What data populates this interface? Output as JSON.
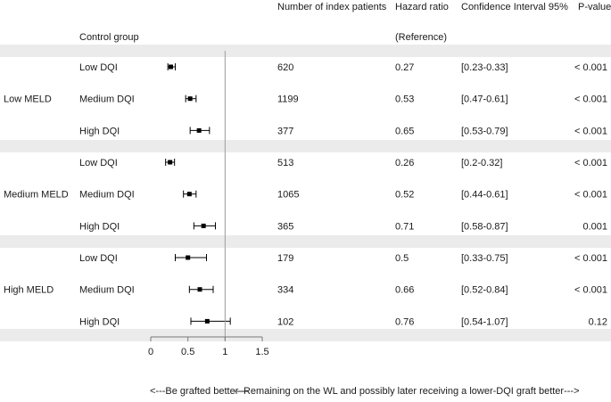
{
  "chart_data": {
    "type": "forest",
    "columns": {
      "patients": "Number of index patients",
      "hr": "Hazard ratio",
      "ci": "Confidence Interval 95%",
      "p": "P-value"
    },
    "control_row": {
      "label": "Control group",
      "hr_text": "(Reference)"
    },
    "groups": [
      {
        "name": "Low MELD",
        "rows": [
          {
            "label": "Low DQI",
            "n": "620",
            "hr": 0.27,
            "lo": 0.23,
            "hi": 0.33,
            "hr_text": "0.27",
            "ci_text": "[0.23-0.33]",
            "p": "< 0.001"
          },
          {
            "label": "Medium DQI",
            "n": "1199",
            "hr": 0.53,
            "lo": 0.47,
            "hi": 0.61,
            "hr_text": "0.53",
            "ci_text": "[0.47-0.61]",
            "p": "< 0.001"
          },
          {
            "label": "High DQI",
            "n": "377",
            "hr": 0.65,
            "lo": 0.53,
            "hi": 0.79,
            "hr_text": "0.65",
            "ci_text": "[0.53-0.79]",
            "p": "< 0.001"
          }
        ]
      },
      {
        "name": "Medium MELD",
        "rows": [
          {
            "label": "Low DQI",
            "n": "513",
            "hr": 0.26,
            "lo": 0.2,
            "hi": 0.32,
            "hr_text": "0.26",
            "ci_text": "[0.2-0.32]",
            "p": "< 0.001"
          },
          {
            "label": "Medium DQI",
            "n": "1065",
            "hr": 0.52,
            "lo": 0.44,
            "hi": 0.61,
            "hr_text": "0.52",
            "ci_text": "[0.44-0.61]",
            "p": "< 0.001"
          },
          {
            "label": "High DQI",
            "n": "365",
            "hr": 0.71,
            "lo": 0.58,
            "hi": 0.87,
            "hr_text": "0.71",
            "ci_text": "[0.58-0.87]",
            "p": "0.001"
          }
        ]
      },
      {
        "name": "High MELD",
        "rows": [
          {
            "label": "Low DQI",
            "n": "179",
            "hr": 0.5,
            "lo": 0.33,
            "hi": 0.75,
            "hr_text": "0.5",
            "ci_text": "[0.33-0.75]",
            "p": "< 0.001"
          },
          {
            "label": "Medium DQI",
            "n": "334",
            "hr": 0.66,
            "lo": 0.52,
            "hi": 0.84,
            "hr_text": "0.66",
            "ci_text": "[0.52-0.84]",
            "p": "< 0.001"
          },
          {
            "label": "High DQI",
            "n": "102",
            "hr": 0.76,
            "lo": 0.54,
            "hi": 1.07,
            "hr_text": "0.76",
            "ci_text": "[0.54-1.07]",
            "p": "0.12"
          }
        ]
      }
    ],
    "x_axis": {
      "min": 0,
      "max": 1.5,
      "ticks": [
        0,
        0.5,
        1,
        1.5
      ],
      "tick_labels": [
        "0",
        "0.5",
        "1",
        "1.5"
      ],
      "reference": 1
    },
    "footer_left": "<---Be grafted better---",
    "footer_right": "---Remaining on the WL and possibly later receiving a lower-DQI graft better--->"
  }
}
